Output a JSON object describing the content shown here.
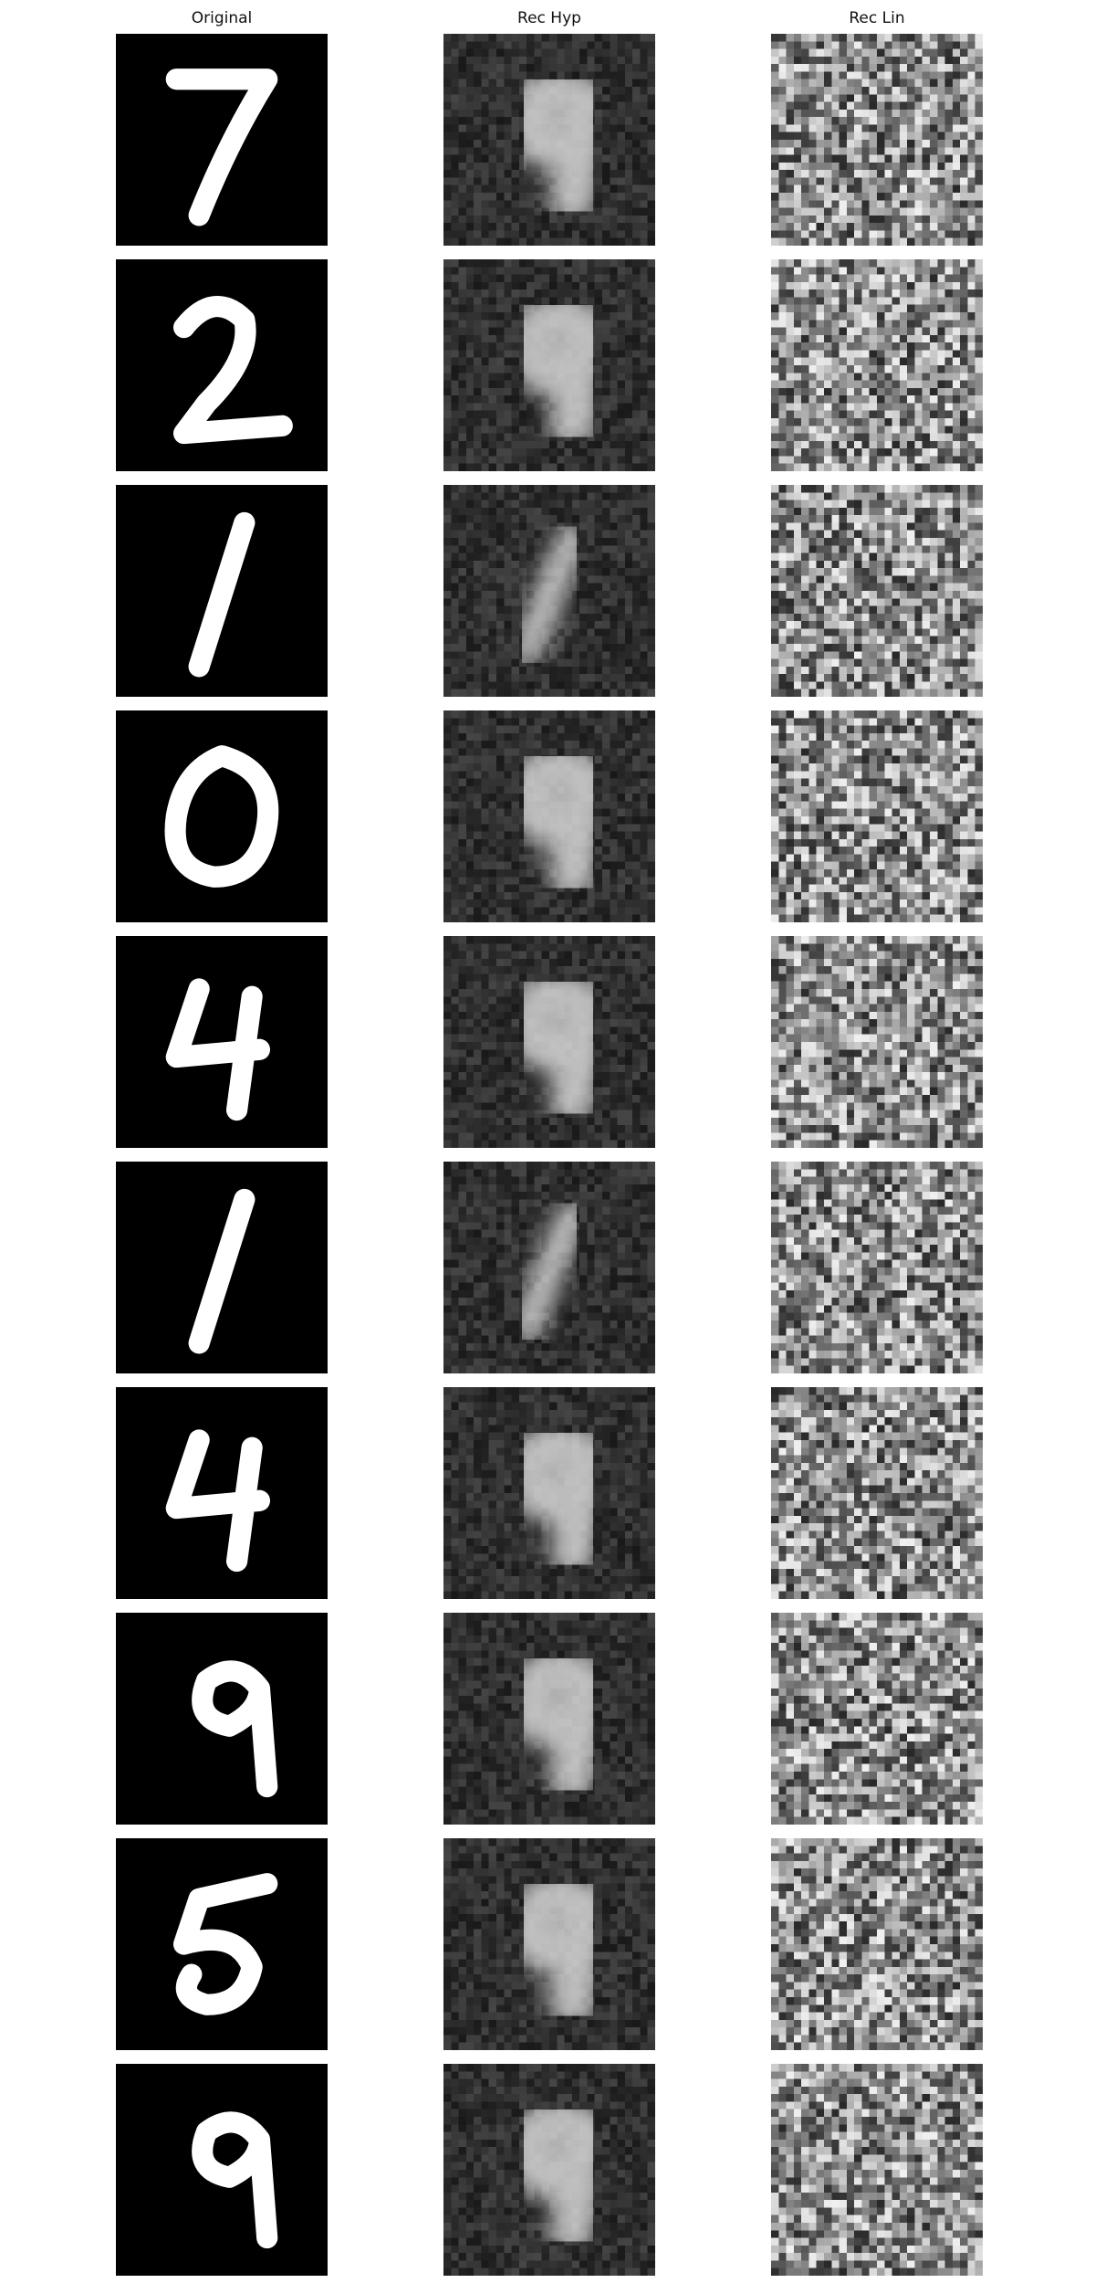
{
  "columns": [
    "Original",
    "Rec Hyp",
    "Rec Lin"
  ],
  "digits": [
    7,
    2,
    1,
    0,
    4,
    1,
    4,
    9,
    5,
    9
  ],
  "colors": {
    "background": "#000000",
    "digit_ink": "#ffffff",
    "page": "#ffffff"
  }
}
